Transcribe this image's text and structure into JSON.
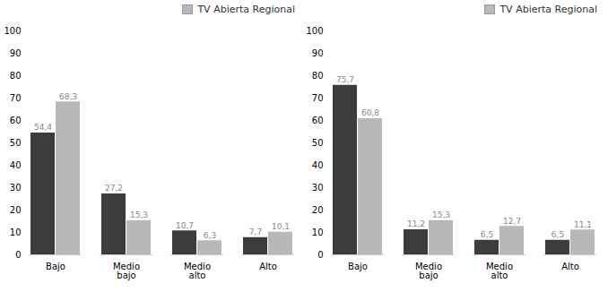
{
  "chart_data": [
    {
      "type": "bar",
      "categories": [
        "Bajo",
        "Medio\nbajo",
        "Medio\nalto",
        "Alto"
      ],
      "series": [
        {
          "color": "#3c3c3c",
          "values": [
            54.4,
            27.2,
            10.7,
            7.7
          ],
          "value_labels": [
            "54,4",
            "27,2",
            "10,7",
            "7,7"
          ]
        },
        {
          "name": "TV Abierta Regional",
          "color": "#b8b8b8",
          "values": [
            68.3,
            15.3,
            6.3,
            10.1
          ],
          "value_labels": [
            "68,3",
            "15,3",
            "6,3",
            "10,1"
          ]
        }
      ],
      "ylim": [
        0,
        100
      ],
      "yticks": [
        0,
        10,
        20,
        30,
        40,
        50,
        60,
        70,
        80,
        90,
        100
      ],
      "grid": false,
      "legend": "upper right",
      "data_labels": true
    },
    {
      "type": "bar",
      "categories": [
        "Bajo",
        "Medio\nbajo",
        "Medio\nalto",
        "Alto"
      ],
      "series": [
        {
          "color": "#3c3c3c",
          "values": [
            75.7,
            11.2,
            6.5,
            6.5
          ],
          "value_labels": [
            "75,7",
            "11,2",
            "6,5",
            "6,5"
          ]
        },
        {
          "name": "TV Abierta Regional",
          "color": "#b8b8b8",
          "values": [
            60.8,
            15.3,
            12.7,
            11.1
          ],
          "value_labels": [
            "60,8",
            "15,3",
            "12,7",
            "11,1"
          ]
        }
      ],
      "ylim": [
        0,
        100
      ],
      "yticks": [
        0,
        10,
        20,
        30,
        40,
        50,
        60,
        70,
        80,
        90,
        100
      ],
      "grid": false,
      "legend": "upper right",
      "data_labels": true
    }
  ]
}
